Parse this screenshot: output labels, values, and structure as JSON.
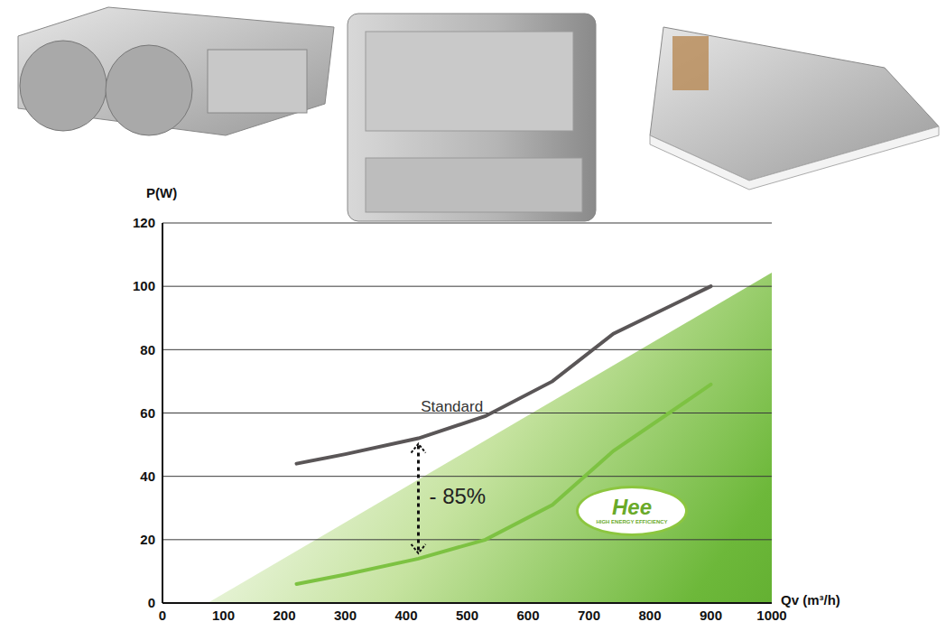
{
  "chart_data": {
    "type": "line",
    "xlabel": "Qv (m³/h)",
    "ylabel": "P(W)",
    "x": [
      220,
      300,
      420,
      530,
      640,
      740,
      900
    ],
    "series": [
      {
        "name": "Standard",
        "color": "#5a5657",
        "values": [
          44,
          47,
          52,
          59,
          70,
          85,
          100
        ]
      },
      {
        "color": "#7dc242",
        "values": [
          6,
          9,
          14,
          20,
          31,
          48,
          69
        ]
      }
    ],
    "xlim": [
      0,
      1000
    ],
    "xticks": [
      0,
      100,
      200,
      300,
      400,
      500,
      600,
      700,
      800,
      900,
      1000
    ],
    "ylim": [
      0,
      120
    ],
    "yticks": [
      0,
      20,
      40,
      60,
      80,
      100,
      120
    ],
    "grid": true,
    "annotations": [
      {
        "text": "- 85%",
        "x": 420
      },
      {
        "text": "Hee"
      },
      {
        "text": "HIGH ENERGY EFFICIENCY"
      }
    ]
  }
}
